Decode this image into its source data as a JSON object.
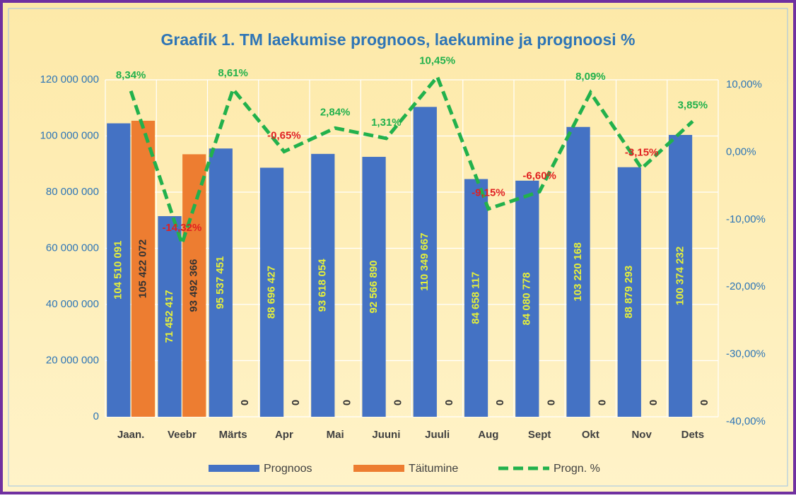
{
  "chart_data": {
    "type": "bar_line",
    "title": "Graafik 1. TM laekumise prognoos, laekumine ja prognoosi %",
    "categories": [
      "Jaan.",
      "Veebr",
      "Märts",
      "Apr",
      "Mai",
      "Juuni",
      "Juuli",
      "Aug",
      "Sept",
      "Okt",
      "Nov",
      "Dets"
    ],
    "series": [
      {
        "name": "Prognoos",
        "type": "bar",
        "color": "#4472c4",
        "label_color": "#e6f03a",
        "values": [
          104510091,
          71452417,
          95537451,
          88696427,
          93618054,
          92566890,
          110349667,
          84658117,
          84080778,
          103220168,
          88879293,
          100374232
        ],
        "value_labels": [
          "104 510 091",
          "71 452 417",
          "95 537 451",
          "88 696 427",
          "93 618 054",
          "92 566 890",
          "110 349 667",
          "84 658 117",
          "84 080 778",
          "103 220 168",
          "88 879 293",
          "100 374 232"
        ]
      },
      {
        "name": "Täitumine",
        "type": "bar",
        "color": "#ed7d31",
        "label_color": "#333333",
        "values": [
          105422072,
          93492366,
          0,
          0,
          0,
          0,
          0,
          0,
          0,
          0,
          0,
          0
        ],
        "value_labels": [
          "105 422 072",
          "93 492 366",
          "0",
          "0",
          "0",
          "0",
          "0",
          "0",
          "0",
          "0",
          "0",
          "0"
        ]
      },
      {
        "name": "Progn. %",
        "type": "line",
        "axis": "y2",
        "color": "#22b14c",
        "negative_label_color": "#e02020",
        "values": [
          8.34,
          -14.32,
          8.61,
          -0.65,
          2.84,
          1.31,
          10.45,
          -9.15,
          -6.6,
          8.09,
          -3.15,
          3.85
        ],
        "value_labels": [
          "8,34%",
          "-14,32%",
          "8,61%",
          "-0,65%",
          "2,84%",
          "1,31%",
          "10,45%",
          "-9,15%",
          "-6,60%",
          "8,09%",
          "-3,15%",
          "3,85%"
        ]
      }
    ],
    "ylim": [
      0,
      120000000
    ],
    "yticks": [
      0,
      {
        "value": 20000000,
        "label": "20 000 000"
      },
      {
        "value": 40000000,
        "label": "40 000 000"
      },
      {
        "value": 60000000,
        "label": "60 000 000"
      },
      {
        "value": 80000000,
        "label": "80 000 000"
      },
      {
        "value": 100000000,
        "label": "100 000 000"
      },
      {
        "value": 120000000,
        "label": "120 000 000"
      }
    ],
    "y2lim": [
      -40,
      10
    ],
    "y2ticks": [
      {
        "value": -40,
        "label": "-40,00%"
      },
      {
        "value": -30,
        "label": "-30,00%"
      },
      {
        "value": -20,
        "label": "-20,00%"
      },
      {
        "value": -10,
        "label": "-10,00%"
      },
      {
        "value": 0,
        "label": "0,00%"
      },
      {
        "value": 10,
        "label": "10,00%"
      }
    ],
    "grid": true,
    "legend": "bottom"
  }
}
